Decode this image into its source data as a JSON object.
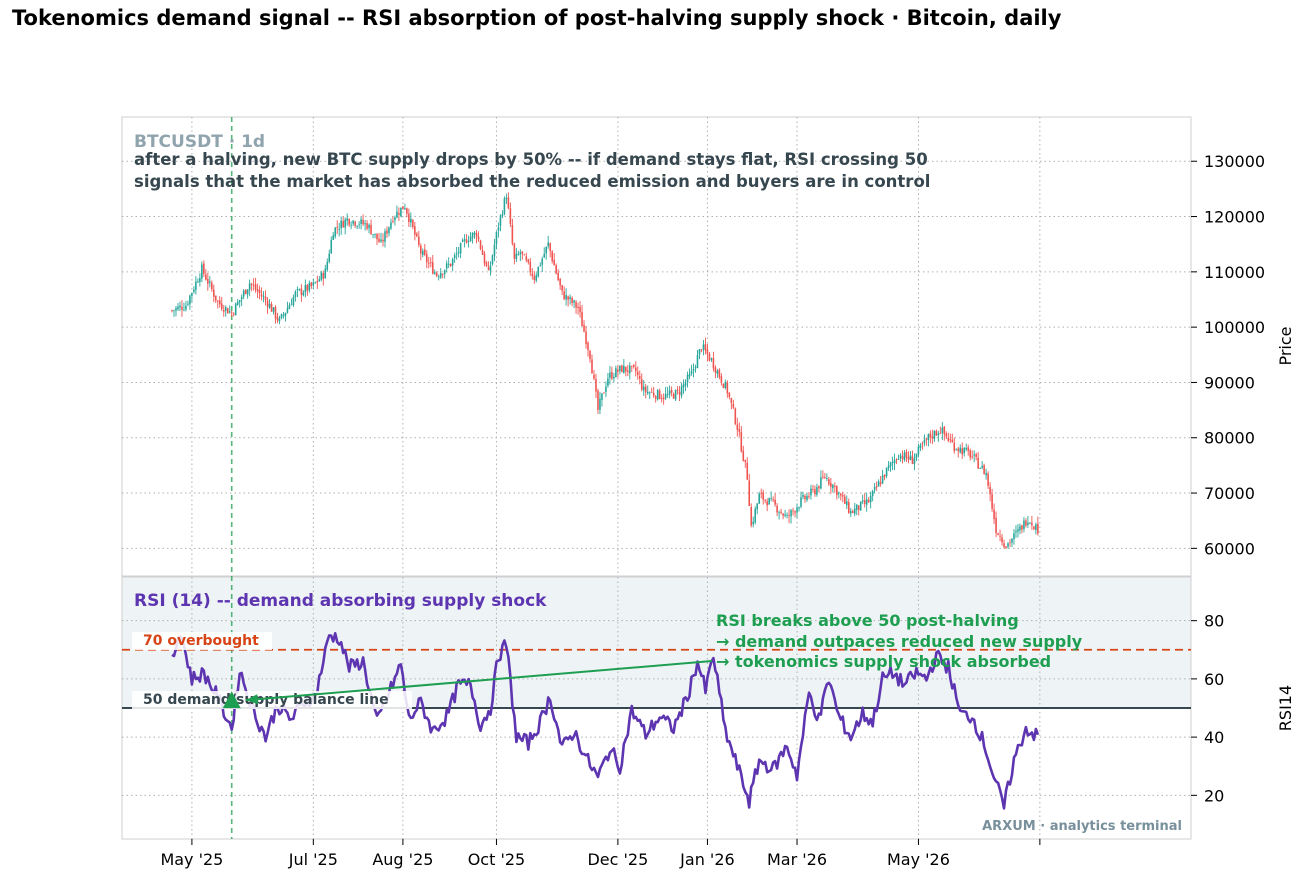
{
  "title": "Tokenomics demand signal -- RSI absorption of post-halving supply shock  ·  Bitcoin, daily",
  "price_panel": {
    "symbol_label": "BTCUSDT · 1d",
    "annotation_line1": "after a halving, new BTC supply drops by 50% -- if demand stays flat, RSI crossing 50",
    "annotation_line2": "signals that the market has absorbed the reduced emission and buyers are in control",
    "ylabel": "Price",
    "yticks": [
      "60000",
      "70000",
      "80000",
      "90000",
      "100000",
      "110000",
      "120000",
      "130000"
    ]
  },
  "rsi_panel": {
    "title": "RSI (14) -- demand absorbing supply shock",
    "ylabel": "RSI14",
    "yticks": [
      "20",
      "40",
      "60",
      "80"
    ],
    "overbought_label": "70  overbought",
    "balance_label": "50  demand/supply balance line",
    "callout_line1": "RSI breaks above 50 post-halving",
    "callout_line2": "→ demand outpaces reduced new supply",
    "callout_line3": "→ tokenomics supply shock absorbed",
    "watermark": "ARXUM · analytics terminal"
  },
  "xaxis": {
    "ticks": [
      "May '25",
      "Jul '25",
      "Aug '25",
      "Oct '25",
      "Dec '25",
      "Jan '26",
      "Mar '26",
      "May '26"
    ]
  },
  "colors": {
    "up": "#26a69a",
    "down": "#ef5350",
    "rsi": "#5e35b1",
    "overbought": "#d84315",
    "balance": "#37474f",
    "signal": "#1e9e50",
    "grid": "#b0b0b0",
    "rsi_band": "#eef4f6"
  },
  "chart_data": {
    "type": "candlestick",
    "interval": "1d",
    "price_range": [
      55000,
      138000
    ],
    "rsi_range": [
      5,
      95
    ],
    "first_date": "2025-04-21",
    "halving_marker_date": "2025-05-21",
    "price_keypoints": [
      {
        "date": "2025-04-21",
        "close": 103000
      },
      {
        "date": "2025-04-28",
        "close": 104000
      },
      {
        "date": "2025-05-06",
        "close": 110500
      },
      {
        "date": "2025-05-14",
        "close": 104500
      },
      {
        "date": "2025-05-21",
        "close": 102500
      },
      {
        "date": "2025-05-30",
        "close": 108000
      },
      {
        "date": "2025-06-08",
        "close": 104500
      },
      {
        "date": "2025-06-14",
        "close": 101000
      },
      {
        "date": "2025-06-22",
        "close": 106000
      },
      {
        "date": "2025-07-01",
        "close": 107500
      },
      {
        "date": "2025-07-07",
        "close": 110000
      },
      {
        "date": "2025-07-11",
        "close": 117500
      },
      {
        "date": "2025-07-18",
        "close": 119500
      },
      {
        "date": "2025-07-28",
        "close": 118500
      },
      {
        "date": "2025-08-04",
        "close": 115000
      },
      {
        "date": "2025-08-10",
        "close": 120000
      },
      {
        "date": "2025-08-16",
        "close": 122000
      },
      {
        "date": "2025-08-24",
        "close": 113500
      },
      {
        "date": "2025-09-01",
        "close": 109500
      },
      {
        "date": "2025-09-08",
        "close": 111500
      },
      {
        "date": "2025-09-16",
        "close": 116000
      },
      {
        "date": "2025-09-21",
        "close": 117000
      },
      {
        "date": "2025-09-27",
        "close": 109500
      },
      {
        "date": "2025-10-02",
        "close": 118500
      },
      {
        "date": "2025-10-06",
        "close": 124000
      },
      {
        "date": "2025-10-10",
        "close": 112000
      },
      {
        "date": "2025-10-13",
        "close": 113500
      },
      {
        "date": "2025-10-20",
        "close": 109000
      },
      {
        "date": "2025-10-27",
        "close": 115000
      },
      {
        "date": "2025-11-03",
        "close": 106000
      },
      {
        "date": "2025-11-11",
        "close": 103500
      },
      {
        "date": "2025-11-17",
        "close": 95000
      },
      {
        "date": "2025-11-21",
        "close": 85000
      },
      {
        "date": "2025-11-26",
        "close": 91000
      },
      {
        "date": "2025-12-03",
        "close": 92500
      },
      {
        "date": "2025-12-10",
        "close": 92000
      },
      {
        "date": "2025-12-14",
        "close": 88500
      },
      {
        "date": "2025-12-24",
        "close": 87500
      },
      {
        "date": "2025-12-31",
        "close": 88000
      },
      {
        "date": "2026-01-07",
        "close": 91500
      },
      {
        "date": "2026-01-12",
        "close": 96500
      },
      {
        "date": "2026-01-17",
        "close": 94000
      },
      {
        "date": "2026-01-25",
        "close": 88500
      },
      {
        "date": "2026-01-30",
        "close": 82000
      },
      {
        "date": "2026-02-04",
        "close": 73000
      },
      {
        "date": "2026-02-06",
        "close": 64000
      },
      {
        "date": "2026-02-10",
        "close": 69500
      },
      {
        "date": "2026-02-17",
        "close": 68000
      },
      {
        "date": "2026-02-24",
        "close": 65500
      },
      {
        "date": "2026-03-03",
        "close": 68500
      },
      {
        "date": "2026-03-10",
        "close": 70500
      },
      {
        "date": "2026-03-15",
        "close": 73000
      },
      {
        "date": "2026-03-20",
        "close": 71000
      },
      {
        "date": "2026-03-28",
        "close": 66500
      },
      {
        "date": "2026-04-06",
        "close": 68500
      },
      {
        "date": "2026-04-14",
        "close": 73500
      },
      {
        "date": "2026-04-21",
        "close": 77000
      },
      {
        "date": "2026-04-28",
        "close": 76000
      },
      {
        "date": "2026-05-06",
        "close": 80000
      },
      {
        "date": "2026-05-12",
        "close": 81500
      },
      {
        "date": "2026-05-19",
        "close": 78500
      },
      {
        "date": "2026-05-27",
        "close": 77000
      },
      {
        "date": "2026-06-04",
        "close": 73500
      },
      {
        "date": "2026-06-09",
        "close": 63500
      },
      {
        "date": "2026-06-14",
        "close": 60500
      },
      {
        "date": "2026-06-20",
        "close": 63000
      },
      {
        "date": "2026-06-25",
        "close": 65500
      },
      {
        "date": "2026-06-30",
        "close": 63500
      }
    ],
    "rsi_keypoints": [
      {
        "date": "2025-04-21",
        "rsi": 66
      },
      {
        "date": "2025-04-25",
        "rsi": 77
      },
      {
        "date": "2025-05-01",
        "rsi": 60
      },
      {
        "date": "2025-05-07",
        "rsi": 62
      },
      {
        "date": "2025-05-13",
        "rsi": 55
      },
      {
        "date": "2025-05-21",
        "rsi": 43
      },
      {
        "date": "2025-05-25",
        "rsi": 63
      },
      {
        "date": "2025-06-01",
        "rsi": 49
      },
      {
        "date": "2025-06-07",
        "rsi": 40
      },
      {
        "date": "2025-06-13",
        "rsi": 51
      },
      {
        "date": "2025-06-20",
        "rsi": 46
      },
      {
        "date": "2025-06-26",
        "rsi": 52
      },
      {
        "date": "2025-07-02",
        "rsi": 54
      },
      {
        "date": "2025-07-09",
        "rsi": 75
      },
      {
        "date": "2025-07-14",
        "rsi": 74
      },
      {
        "date": "2025-07-19",
        "rsi": 64
      },
      {
        "date": "2025-07-26",
        "rsi": 66
      },
      {
        "date": "2025-08-02",
        "rsi": 45
      },
      {
        "date": "2025-08-08",
        "rsi": 55
      },
      {
        "date": "2025-08-14",
        "rsi": 65
      },
      {
        "date": "2025-08-18",
        "rsi": 46
      },
      {
        "date": "2025-08-24",
        "rsi": 52
      },
      {
        "date": "2025-08-30",
        "rsi": 42
      },
      {
        "date": "2025-09-06",
        "rsi": 47
      },
      {
        "date": "2025-09-12",
        "rsi": 58
      },
      {
        "date": "2025-09-18",
        "rsi": 58
      },
      {
        "date": "2025-09-23",
        "rsi": 44
      },
      {
        "date": "2025-09-28",
        "rsi": 50
      },
      {
        "date": "2025-10-02",
        "rsi": 68
      },
      {
        "date": "2025-10-06",
        "rsi": 72
      },
      {
        "date": "2025-10-11",
        "rsi": 40
      },
      {
        "date": "2025-10-17",
        "rsi": 38
      },
      {
        "date": "2025-10-23",
        "rsi": 45
      },
      {
        "date": "2025-10-28",
        "rsi": 54
      },
      {
        "date": "2025-11-03",
        "rsi": 36
      },
      {
        "date": "2025-11-09",
        "rsi": 42
      },
      {
        "date": "2025-11-15",
        "rsi": 33
      },
      {
        "date": "2025-11-21",
        "rsi": 26
      },
      {
        "date": "2025-11-27",
        "rsi": 36
      },
      {
        "date": "2025-12-02",
        "rsi": 30
      },
      {
        "date": "2025-12-08",
        "rsi": 49
      },
      {
        "date": "2025-12-15",
        "rsi": 41
      },
      {
        "date": "2025-12-22",
        "rsi": 47
      },
      {
        "date": "2025-12-29",
        "rsi": 43
      },
      {
        "date": "2026-01-05",
        "rsi": 54
      },
      {
        "date": "2026-01-10",
        "rsi": 66
      },
      {
        "date": "2026-01-14",
        "rsi": 56
      },
      {
        "date": "2026-01-18",
        "rsi": 68
      },
      {
        "date": "2026-01-24",
        "rsi": 42
      },
      {
        "date": "2026-01-30",
        "rsi": 30
      },
      {
        "date": "2026-02-05",
        "rsi": 18
      },
      {
        "date": "2026-02-10",
        "rsi": 32
      },
      {
        "date": "2026-02-17",
        "rsi": 29
      },
      {
        "date": "2026-02-24",
        "rsi": 37
      },
      {
        "date": "2026-03-01",
        "rsi": 27
      },
      {
        "date": "2026-03-07",
        "rsi": 55
      },
      {
        "date": "2026-03-12",
        "rsi": 46
      },
      {
        "date": "2026-03-17",
        "rsi": 60
      },
      {
        "date": "2026-03-22",
        "rsi": 47
      },
      {
        "date": "2026-03-28",
        "rsi": 40
      },
      {
        "date": "2026-04-03",
        "rsi": 48
      },
      {
        "date": "2026-04-08",
        "rsi": 45
      },
      {
        "date": "2026-04-13",
        "rsi": 60
      },
      {
        "date": "2026-04-18",
        "rsi": 62
      },
      {
        "date": "2026-04-24",
        "rsi": 58
      },
      {
        "date": "2026-04-30",
        "rsi": 62
      },
      {
        "date": "2026-05-05",
        "rsi": 60
      },
      {
        "date": "2026-05-10",
        "rsi": 68
      },
      {
        "date": "2026-05-16",
        "rsi": 64
      },
      {
        "date": "2026-05-22",
        "rsi": 48
      },
      {
        "date": "2026-05-28",
        "rsi": 47
      },
      {
        "date": "2026-06-03",
        "rsi": 38
      },
      {
        "date": "2026-06-08",
        "rsi": 26
      },
      {
        "date": "2026-06-13",
        "rsi": 16
      },
      {
        "date": "2026-06-18",
        "rsi": 32
      },
      {
        "date": "2026-06-24",
        "rsi": 43
      },
      {
        "date": "2026-06-30",
        "rsi": 40
      }
    ],
    "overbought_level": 70,
    "balance_level": 50
  }
}
